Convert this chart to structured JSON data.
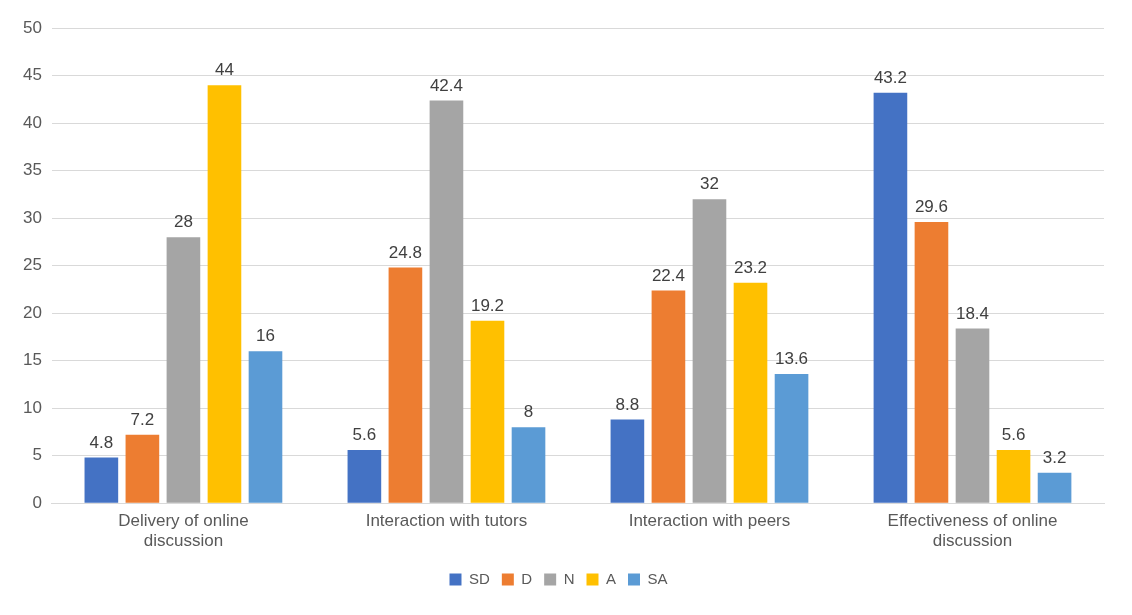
{
  "chart_data": {
    "type": "bar",
    "categories": [
      "Delivery of online discussion",
      "Interaction with tutors",
      "Interaction with peers",
      "Effectiveness of online discussion"
    ],
    "series": [
      {
        "name": "SD",
        "color": "#4472c4",
        "values": [
          4.8,
          5.6,
          8.8,
          43.2
        ]
      },
      {
        "name": "D",
        "color": "#ed7d31",
        "values": [
          7.2,
          24.8,
          22.4,
          29.6
        ]
      },
      {
        "name": "N",
        "color": "#a5a5a5",
        "values": [
          28,
          42.4,
          32,
          18.4
        ]
      },
      {
        "name": "A",
        "color": "#ffc000",
        "values": [
          44,
          19.2,
          23.2,
          5.6
        ]
      },
      {
        "name": "SA",
        "color": "#5b9bd5",
        "values": [
          16,
          8,
          13.6,
          3.2
        ]
      }
    ],
    "ylim": [
      0,
      50
    ],
    "yticks": [
      0,
      5,
      10,
      15,
      20,
      25,
      30,
      35,
      40,
      45,
      50
    ],
    "grid": "y",
    "legend": "bottom",
    "data_labels": true
  }
}
